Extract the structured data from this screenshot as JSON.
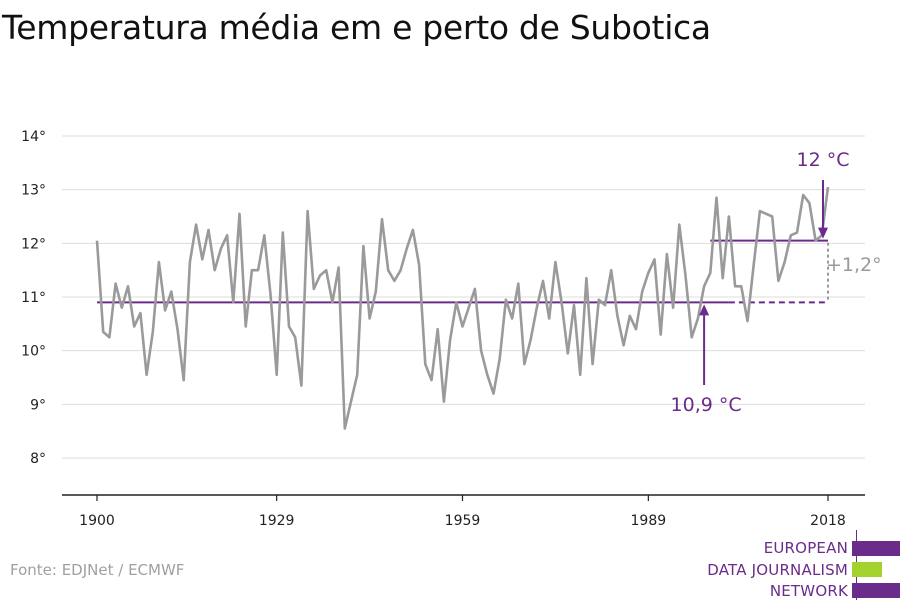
{
  "title": "Temperatura média em e perto de Subotica",
  "source": "Fonte: EDJNet / ECMWF",
  "logo": {
    "lines": [
      "EUROPEAN",
      "DATA JOURNALISM",
      "NETWORK"
    ],
    "colors": {
      "purple": "#6a2b8a",
      "green": "#a3d12e"
    }
  },
  "chart_data": {
    "type": "line",
    "title": "Temperatura média em e perto de Subotica",
    "xlabel": "",
    "ylabel": "",
    "ylim": [
      7.3,
      14.3
    ],
    "yticks": [
      8,
      9,
      10,
      11,
      12,
      13,
      14
    ],
    "ytick_labels": [
      "8°",
      "9°",
      "10°",
      "11°",
      "12°",
      "13°",
      "14°"
    ],
    "xlim": [
      1900,
      2018
    ],
    "xticks": [
      1900,
      1929,
      1959,
      1989,
      2018
    ],
    "xtick_labels": [
      "1900",
      "1929",
      "1959",
      "1989",
      "2018"
    ],
    "grid": true,
    "series": [
      {
        "color": "#9a9a9a",
        "x": [
          1900,
          1901,
          1902,
          1903,
          1904,
          1905,
          1906,
          1907,
          1908,
          1909,
          1910,
          1911,
          1912,
          1913,
          1914,
          1915,
          1916,
          1917,
          1918,
          1919,
          1920,
          1921,
          1922,
          1923,
          1924,
          1925,
          1926,
          1927,
          1928,
          1929,
          1930,
          1931,
          1932,
          1933,
          1934,
          1935,
          1936,
          1937,
          1938,
          1939,
          1940,
          1941,
          1942,
          1943,
          1944,
          1945,
          1946,
          1947,
          1948,
          1949,
          1950,
          1951,
          1952,
          1953,
          1954,
          1955,
          1956,
          1957,
          1958,
          1959,
          1960,
          1961,
          1962,
          1963,
          1964,
          1965,
          1966,
          1967,
          1968,
          1969,
          1970,
          1971,
          1972,
          1973,
          1974,
          1975,
          1976,
          1977,
          1978,
          1979,
          1980,
          1981,
          1982,
          1983,
          1984,
          1985,
          1986,
          1987,
          1988,
          1989,
          1990,
          1991,
          1992,
          1993,
          1994,
          1995,
          1996,
          1997,
          1998,
          1999,
          2000,
          2001,
          2002,
          2003,
          2004,
          2005,
          2006,
          2007,
          2008,
          2009,
          2010,
          2011,
          2012,
          2013,
          2014,
          2015,
          2016,
          2017,
          2018
        ],
        "values": [
          12.05,
          10.35,
          10.25,
          11.25,
          10.8,
          11.2,
          10.45,
          10.7,
          9.55,
          10.35,
          11.65,
          10.75,
          11.1,
          10.4,
          9.45,
          11.65,
          12.35,
          11.7,
          12.25,
          11.5,
          11.9,
          12.15,
          10.9,
          12.55,
          10.45,
          11.5,
          11.5,
          12.15,
          11.05,
          9.55,
          12.2,
          10.45,
          10.25,
          9.35,
          12.6,
          11.15,
          11.4,
          11.5,
          10.9,
          11.55,
          8.55,
          9.05,
          9.55,
          11.95,
          10.6,
          11.1,
          12.45,
          11.5,
          11.3,
          11.5,
          11.9,
          12.25,
          11.6,
          9.75,
          9.45,
          10.4,
          9.05,
          10.2,
          10.9,
          10.45,
          10.8,
          11.15,
          10.0,
          9.55,
          9.2,
          9.85,
          10.95,
          10.6,
          11.25,
          9.75,
          10.2,
          10.8,
          11.3,
          10.6,
          11.65,
          10.9,
          9.95,
          10.85,
          9.55,
          11.35,
          9.75,
          10.95,
          10.85,
          11.5,
          10.65,
          10.1,
          10.65,
          10.4,
          11.1,
          11.45,
          11.7,
          10.3,
          11.8,
          10.8,
          12.35,
          11.4,
          10.25,
          10.6,
          11.2,
          11.45,
          12.85,
          11.35,
          12.5,
          11.2,
          11.2,
          10.55,
          11.6,
          12.6,
          12.55,
          12.5,
          11.3,
          11.65,
          12.15,
          12.2,
          12.9,
          12.75,
          12.05,
          12.15,
          13.05
        ]
      }
    ],
    "reference_lines": [
      {
        "label": "10,9 °C",
        "value": 10.9,
        "from": 1900,
        "to": 2018,
        "color": "#6a2b8a"
      },
      {
        "label": "12 °C",
        "value": 12.05,
        "from": 1999,
        "to": 2018,
        "color": "#6a2b8a"
      }
    ],
    "annotations": [
      {
        "text": "12 °C",
        "color": "#6a2b8a"
      },
      {
        "text": "10,9 °C",
        "color": "#6a2b8a"
      },
      {
        "text": "+1,2°",
        "color": "#9a9a9a"
      }
    ]
  }
}
